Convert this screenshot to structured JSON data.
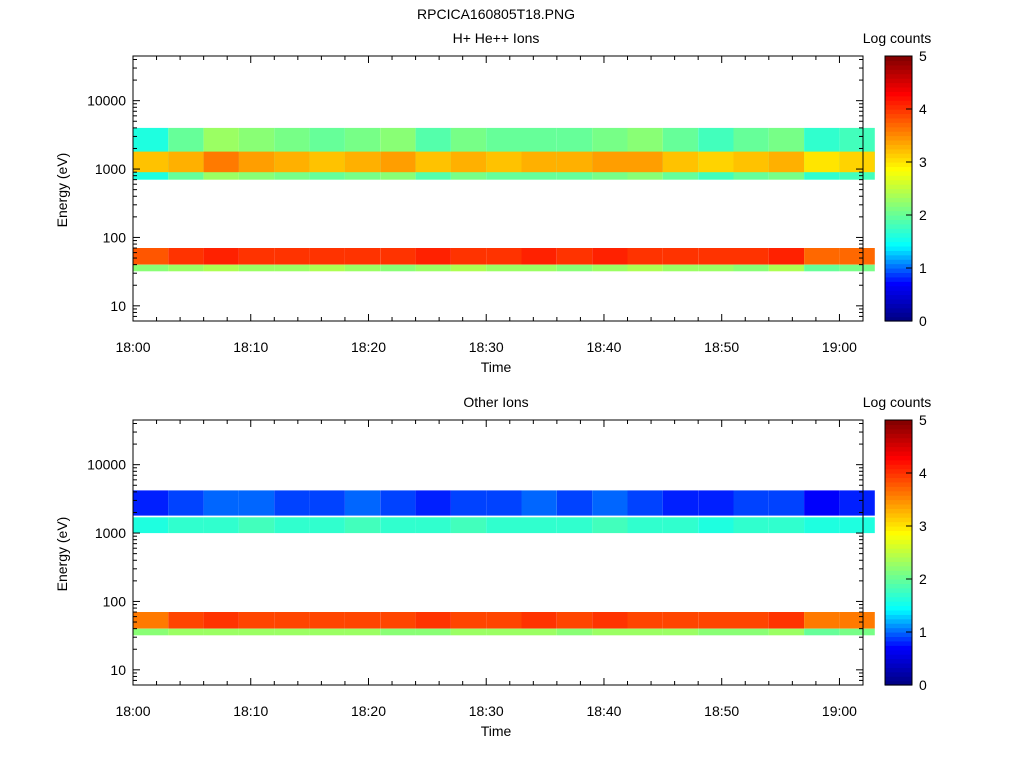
{
  "figure_title": "RPCICA160805T18.PNG",
  "colormap": {
    "stops": [
      "#00007f",
      "#0000ff",
      "#00ffff",
      "#7fff7f",
      "#ffff00",
      "#ff7f00",
      "#ff0000",
      "#7f0000"
    ]
  },
  "chart_data": [
    {
      "type": "heatmap",
      "title": "H+ He++ Ions",
      "xlabel": "Time",
      "ylabel": "Energy (eV)",
      "x_scale": "time",
      "y_scale": "log",
      "xlim": [
        "18:00",
        "19:02"
      ],
      "ylim": [
        6,
        45000
      ],
      "x_ticks": [
        "18:00",
        "18:10",
        "18:20",
        "18:30",
        "18:40",
        "18:50",
        "19:00"
      ],
      "y_ticks": [
        "10",
        "100",
        "1000",
        "10000"
      ],
      "colorbar": {
        "label": "Log counts",
        "range": [
          0,
          5
        ],
        "ticks": [
          "0",
          "1",
          "2",
          "3",
          "4",
          "5"
        ]
      },
      "grid": false,
      "time_columns": [
        "18:00",
        "18:03",
        "18:06",
        "18:09",
        "18:12",
        "18:15",
        "18:18",
        "18:21",
        "18:24",
        "18:27",
        "18:30",
        "18:33",
        "18:36",
        "18:39",
        "18:42",
        "18:45",
        "18:48",
        "18:51",
        "18:54",
        "18:57",
        "19:00"
      ],
      "bands": [
        {
          "e_low": 700,
          "e_high": 4000,
          "levels": [
            1.6,
            2.0,
            2.3,
            2.2,
            2.1,
            2.0,
            2.1,
            2.2,
            1.9,
            2.1,
            2.0,
            2.0,
            2.0,
            2.1,
            2.2,
            2.0,
            1.8,
            2.0,
            2.1,
            1.7,
            1.8
          ]
        },
        {
          "e_low": 900,
          "e_high": 1800,
          "levels": [
            3.2,
            3.3,
            3.6,
            3.4,
            3.3,
            3.2,
            3.3,
            3.4,
            3.2,
            3.3,
            3.2,
            3.3,
            3.3,
            3.4,
            3.4,
            3.2,
            3.1,
            3.2,
            3.3,
            3.0,
            3.1
          ]
        },
        {
          "e_low": 40,
          "e_high": 70,
          "levels": [
            3.8,
            4.0,
            4.1,
            4.0,
            4.0,
            4.0,
            4.0,
            4.0,
            4.1,
            4.0,
            4.0,
            4.1,
            4.0,
            4.1,
            4.0,
            4.0,
            4.0,
            4.0,
            4.1,
            3.7,
            3.7
          ]
        },
        {
          "e_low": 32,
          "e_high": 40,
          "levels": [
            2.2,
            2.3,
            2.4,
            2.3,
            2.3,
            2.4,
            2.3,
            2.2,
            2.3,
            2.4,
            2.3,
            2.3,
            2.2,
            2.3,
            2.4,
            2.3,
            2.3,
            2.2,
            2.4,
            2.0,
            2.1
          ]
        }
      ]
    },
    {
      "type": "heatmap",
      "title": "Other Ions",
      "xlabel": "Time",
      "ylabel": "Energy (eV)",
      "x_scale": "time",
      "y_scale": "log",
      "xlim": [
        "18:00",
        "19:02"
      ],
      "ylim": [
        6,
        45000
      ],
      "x_ticks": [
        "18:00",
        "18:10",
        "18:20",
        "18:30",
        "18:40",
        "18:50",
        "19:00"
      ],
      "y_ticks": [
        "10",
        "100",
        "1000",
        "10000"
      ],
      "colorbar": {
        "label": "Log counts",
        "range": [
          0,
          5
        ],
        "ticks": [
          "0",
          "1",
          "2",
          "3",
          "4",
          "5"
        ]
      },
      "grid": false,
      "time_columns": [
        "18:00",
        "18:03",
        "18:06",
        "18:09",
        "18:12",
        "18:15",
        "18:18",
        "18:21",
        "18:24",
        "18:27",
        "18:30",
        "18:33",
        "18:36",
        "18:39",
        "18:42",
        "18:45",
        "18:48",
        "18:51",
        "18:54",
        "18:57",
        "19:00"
      ],
      "bands": [
        {
          "e_low": 1800,
          "e_high": 4200,
          "levels": [
            0.8,
            0.9,
            1.0,
            1.0,
            0.9,
            0.9,
            1.0,
            0.9,
            0.8,
            0.9,
            0.9,
            1.0,
            0.9,
            1.0,
            0.9,
            0.8,
            0.8,
            0.9,
            0.9,
            0.7,
            0.8
          ]
        },
        {
          "e_low": 1000,
          "e_high": 1700,
          "levels": [
            1.6,
            1.7,
            1.7,
            1.8,
            1.7,
            1.7,
            1.8,
            1.7,
            1.7,
            1.8,
            1.7,
            1.7,
            1.7,
            1.8,
            1.7,
            1.7,
            1.6,
            1.7,
            1.7,
            1.6,
            1.6
          ]
        },
        {
          "e_low": 40,
          "e_high": 70,
          "levels": [
            3.6,
            3.9,
            4.0,
            3.9,
            3.9,
            3.9,
            3.9,
            3.9,
            4.0,
            3.9,
            3.9,
            4.0,
            3.9,
            4.0,
            3.9,
            3.9,
            3.9,
            3.9,
            4.0,
            3.6,
            3.6
          ]
        },
        {
          "e_low": 32,
          "e_high": 40,
          "levels": [
            2.2,
            2.3,
            2.3,
            2.3,
            2.3,
            2.3,
            2.3,
            2.2,
            2.2,
            2.3,
            2.3,
            2.3,
            2.2,
            2.3,
            2.3,
            2.3,
            2.2,
            2.2,
            2.3,
            2.0,
            2.1
          ]
        }
      ]
    }
  ]
}
